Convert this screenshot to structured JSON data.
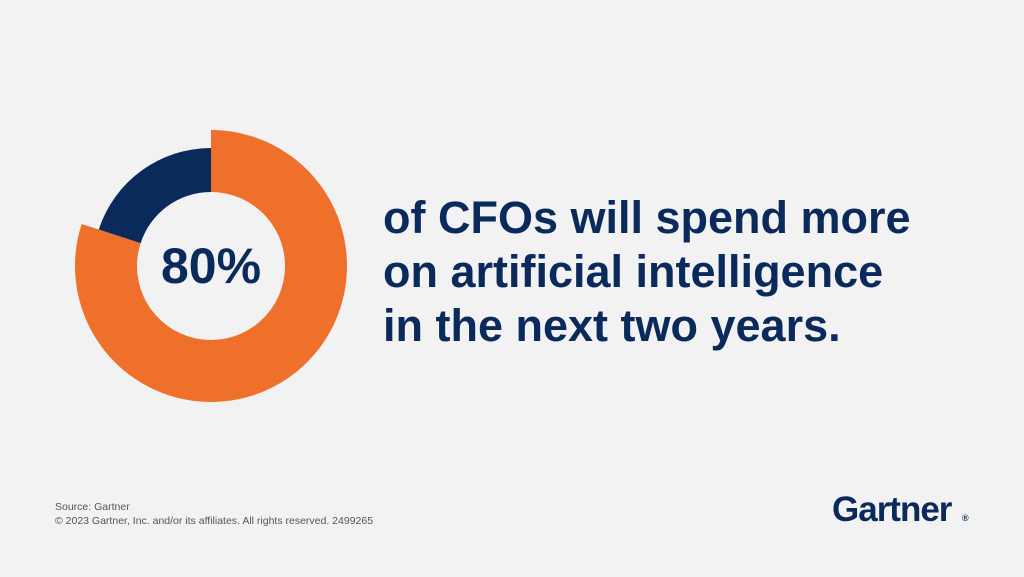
{
  "chart_data": {
    "type": "donut",
    "categories": [
      null,
      null
    ],
    "values": [
      80,
      20
    ],
    "value_labels": [
      "80%",
      null
    ],
    "colors": [
      "#ee702b",
      "#0b2a5c"
    ],
    "text_lines": [
      "of CFOs will spend more",
      "on artificial intelligence",
      "in the next two years."
    ],
    "source": "Source: Gartner",
    "footnote": "© 2023 Gartner, Inc. and/or its affiliates. All rights reserved. 2499265",
    "logo": "Gartner",
    "logo_mark": "®"
  }
}
